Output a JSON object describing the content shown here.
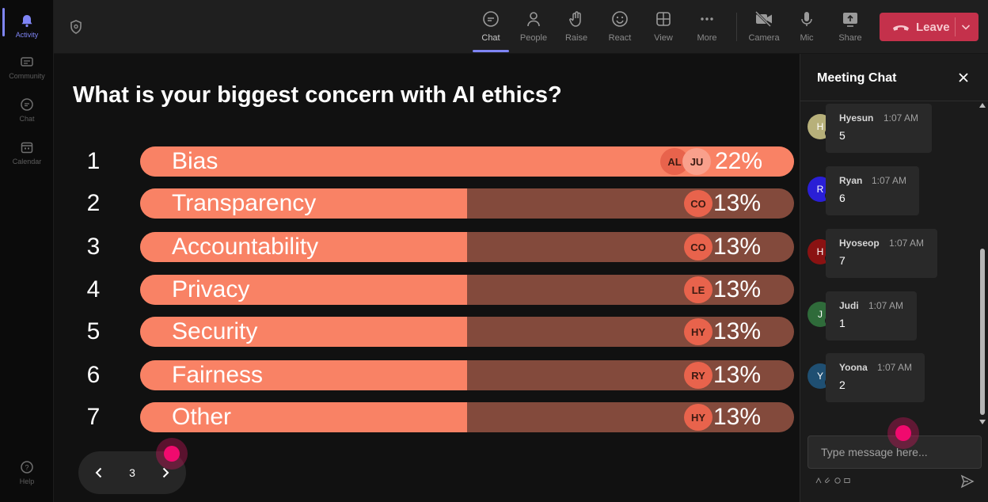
{
  "rail": {
    "items": [
      {
        "label": "Activity",
        "icon": "bell-icon",
        "active": true
      },
      {
        "label": "Community",
        "icon": "community-icon",
        "active": false
      },
      {
        "label": "Chat",
        "icon": "chat-icon",
        "active": false
      },
      {
        "label": "Calendar",
        "icon": "calendar-icon",
        "active": false
      }
    ],
    "help_label": "Help"
  },
  "toolbar": {
    "buttons": [
      {
        "label": "Chat",
        "icon": "chat-icon",
        "active": true
      },
      {
        "label": "People",
        "icon": "people-icon",
        "active": false
      },
      {
        "label": "Raise",
        "icon": "raise-hand-icon",
        "active": false
      },
      {
        "label": "React",
        "icon": "react-icon",
        "active": false
      },
      {
        "label": "View",
        "icon": "view-grid-icon",
        "active": false
      },
      {
        "label": "More",
        "icon": "more-icon",
        "active": false
      },
      {
        "label": "Camera",
        "icon": "camera-off-icon",
        "active": false
      },
      {
        "label": "Mic",
        "icon": "mic-icon",
        "active": false
      },
      {
        "label": "Share",
        "icon": "share-icon",
        "active": false
      }
    ],
    "leave_label": "Leave",
    "leave_color": "#c4314b"
  },
  "poll": {
    "question": "What is your biggest concern with AI ethics?",
    "fill_color": "#f98265",
    "track_color": "#834a3c",
    "options": [
      {
        "number": "1",
        "label": "Bias",
        "percent": "22%",
        "share": 1.0,
        "voters": [
          "AL",
          "JU"
        ]
      },
      {
        "number": "2",
        "label": "Transparency",
        "percent": "13%",
        "share": 0.5,
        "voters": [
          "CO"
        ]
      },
      {
        "number": "3",
        "label": "Accountability",
        "percent": "13%",
        "share": 0.5,
        "voters": [
          "CO"
        ]
      },
      {
        "number": "4",
        "label": "Privacy",
        "percent": "13%",
        "share": 0.5,
        "voters": [
          "LE"
        ]
      },
      {
        "number": "5",
        "label": "Security",
        "percent": "13%",
        "share": 0.5,
        "voters": [
          "HY"
        ]
      },
      {
        "number": "6",
        "label": "Fairness",
        "percent": "13%",
        "share": 0.5,
        "voters": [
          "RY"
        ]
      },
      {
        "number": "7",
        "label": "Other",
        "percent": "13%",
        "share": 0.5,
        "voters": [
          "HY"
        ]
      }
    ],
    "page": "3"
  },
  "chat": {
    "title": "Meeting Chat",
    "messages": [
      {
        "initial": "H",
        "name": "Hyesun",
        "time": "1:07 AM",
        "text": "5",
        "avatar_color": "#b7b07a"
      },
      {
        "initial": "R",
        "name": "Ryan",
        "time": "1:07 AM",
        "text": "6",
        "avatar_color": "#2a1fd6"
      },
      {
        "initial": "H",
        "name": "Hyoseop",
        "time": "1:07 AM",
        "text": "7",
        "avatar_color": "#8a1212"
      },
      {
        "initial": "J",
        "name": "Judi",
        "time": "1:07 AM",
        "text": "1",
        "avatar_color": "#2f6b3a"
      },
      {
        "initial": "Y",
        "name": "Yoona",
        "time": "1:07 AM",
        "text": "2",
        "avatar_color": "#1f4f72"
      }
    ],
    "composer_placeholder": "Type message here..."
  }
}
